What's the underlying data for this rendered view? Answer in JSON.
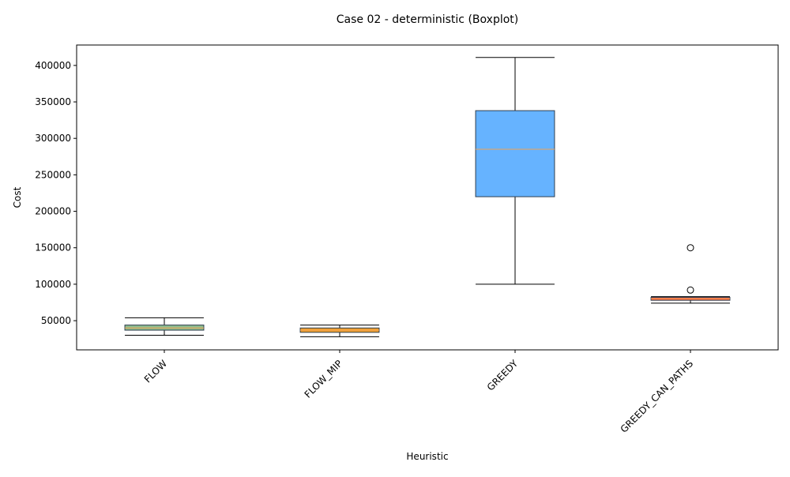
{
  "chart_data": {
    "type": "boxplot",
    "title": "Case 02 - deterministic (Boxplot)",
    "xlabel": "Heuristic",
    "ylabel": "Cost",
    "ylim": [
      10000,
      428000
    ],
    "yticks": [
      50000,
      100000,
      150000,
      200000,
      250000,
      300000,
      350000,
      400000
    ],
    "grid": false,
    "categories": [
      "FLOW",
      "FLOW_MIP",
      "GREEDY",
      "GREEDY_CAN_PATHS"
    ],
    "boxes": [
      {
        "whisker_low": 30000,
        "q1": 37000,
        "median": 40000,
        "q3": 44000,
        "whisker_high": 54000,
        "outliers": [],
        "color": "#8fbc8f"
      },
      {
        "whisker_low": 28000,
        "q1": 34000,
        "median": 37000,
        "q3": 40000,
        "whisker_high": 44000,
        "outliers": [],
        "color": "#f0a030"
      },
      {
        "whisker_low": 100000,
        "q1": 220000,
        "median": 285000,
        "q3": 338000,
        "whisker_high": 411000,
        "outliers": [],
        "color": "#66b3ff"
      },
      {
        "whisker_low": 74000,
        "q1": 78000,
        "median": 80000,
        "q3": 82000,
        "whisker_high": 83000,
        "outliers": [
          92000,
          150000
        ],
        "color": "#ff6347"
      }
    ],
    "median_color": "#f0a050"
  }
}
